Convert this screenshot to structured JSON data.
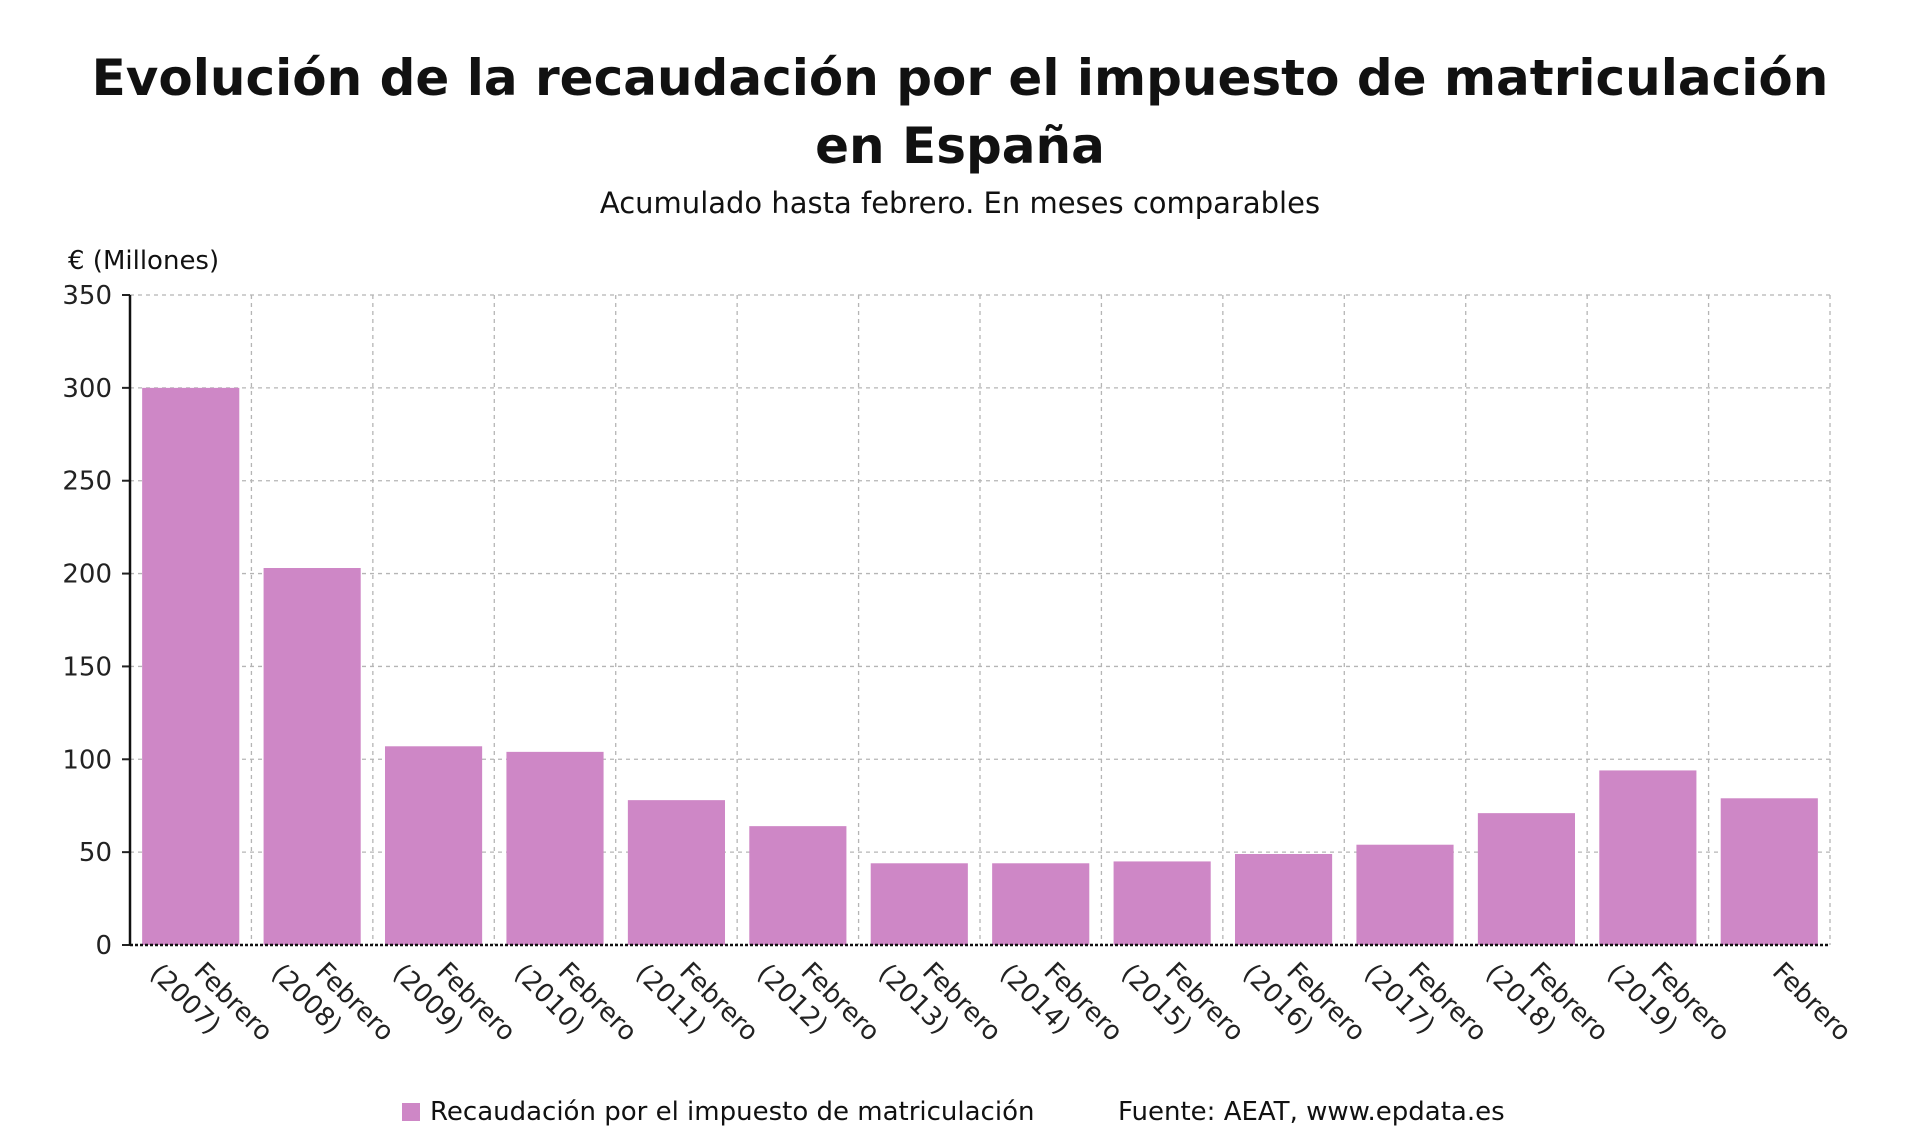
{
  "chart_data": {
    "type": "bar",
    "title": "Evolución de la recaudación por el impuesto de matriculación en España",
    "subtitle": "Acumulado hasta febrero. En meses comparables",
    "ylabel": "€ (Millones)",
    "xlabel": "",
    "ylim": [
      0,
      350
    ],
    "yticks": [
      0,
      50,
      100,
      150,
      200,
      250,
      300,
      350
    ],
    "grid": true,
    "legend_position": "bottom",
    "categories": [
      [
        "Febrero",
        "(2007)"
      ],
      [
        "Febrero",
        "(2008)"
      ],
      [
        "Febrero",
        "(2009)"
      ],
      [
        "Febrero",
        "(2010)"
      ],
      [
        "Febrero",
        "(2011)"
      ],
      [
        "Febrero",
        "(2012)"
      ],
      [
        "Febrero",
        "(2013)"
      ],
      [
        "Febrero",
        "(2014)"
      ],
      [
        "Febrero",
        "(2015)"
      ],
      [
        "Febrero",
        "(2016)"
      ],
      [
        "Febrero",
        "(2017)"
      ],
      [
        "Febrero",
        "(2018)"
      ],
      [
        "Febrero",
        "(2019)"
      ],
      [
        "Febrero"
      ]
    ],
    "series": [
      {
        "name": "Recaudación por el impuesto de matriculación",
        "color": "#ce87c6",
        "values": [
          300,
          203,
          107,
          104,
          78,
          64,
          44,
          44,
          45,
          49,
          54,
          71,
          94,
          79
        ]
      }
    ],
    "source": "Fuente: AEAT, www.epdata.es"
  }
}
